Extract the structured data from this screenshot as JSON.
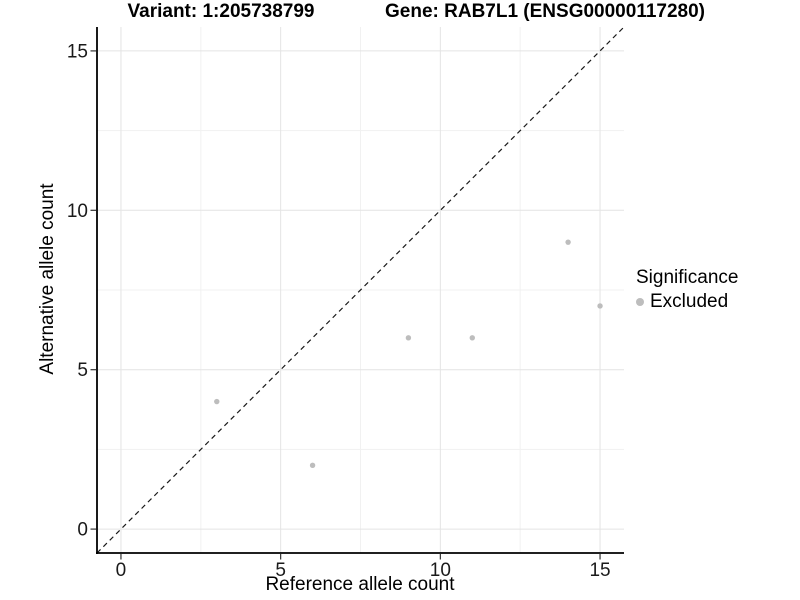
{
  "titles": {
    "variant": "Variant: 1:205738799",
    "gene": "Gene: RAB7L1 (ENSG00000117280)"
  },
  "legend": {
    "title": "Significance",
    "items": [
      {
        "label": "Excluded",
        "color": "#bdbdbd"
      }
    ]
  },
  "chart_data": {
    "type": "scatter",
    "title": "Variant: 1:205738799 — Gene: RAB7L1 (ENSG00000117280)",
    "xlabel": "Reference allele count",
    "ylabel": "Alternative allele count",
    "xlim": [
      -0.75,
      15.75
    ],
    "ylim": [
      -0.75,
      15.75
    ],
    "x_ticks": [
      0,
      5,
      10,
      15
    ],
    "y_ticks": [
      0,
      5,
      10,
      15
    ],
    "x_minor_gridlines": [
      2.5,
      7.5,
      12.5
    ],
    "y_minor_gridlines": [
      2.5,
      7.5,
      12.5
    ],
    "grid": true,
    "legend_position": "right",
    "identity_line": {
      "style": "dashed",
      "slope": 1,
      "intercept": 0
    },
    "series": [
      {
        "name": "Excluded",
        "color": "#bdbdbd",
        "points": [
          [
            3,
            4
          ],
          [
            6,
            2
          ],
          [
            9,
            6
          ],
          [
            11,
            6
          ],
          [
            14,
            9
          ],
          [
            15,
            7
          ]
        ]
      }
    ],
    "style": {
      "major_grid_color": "#e4e4e4",
      "minor_grid_color": "#f1f1f1",
      "axis_color": "#000000",
      "tick_color": "#333333",
      "identity_line_color": "#1a1a1a",
      "background": "#ffffff"
    }
  }
}
